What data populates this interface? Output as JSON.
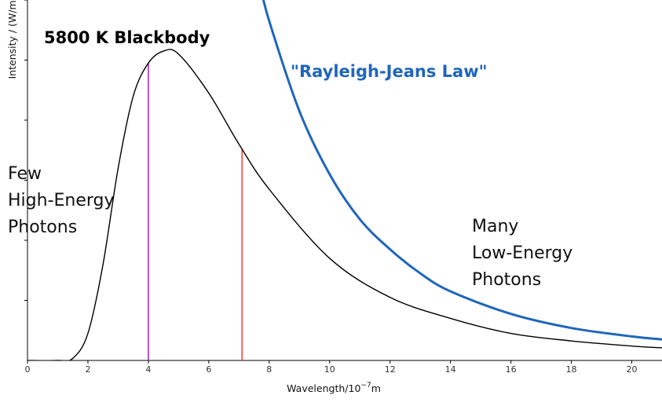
{
  "chart_data": {
    "type": "line",
    "title": "5800 K Blackbody",
    "xlabel": "Wavelength/10",
    "xlabel_exponent": "−7",
    "xlabel_unit": "m",
    "ylabel": "Intensity / (W/m)",
    "xlim": [
      0,
      21
    ],
    "ylim": [
      0,
      1.2
    ],
    "x_ticks": [
      0,
      2,
      4,
      6,
      8,
      10,
      12,
      14,
      16,
      18,
      20
    ],
    "y_ticks": [
      0.2,
      0.4,
      0.6,
      0.8,
      1.0,
      1.2
    ],
    "temperature_K": 5800,
    "series": [
      {
        "name": "5800 K Blackbody",
        "color": "#000000",
        "x": [
          0,
          1,
          1.5,
          2,
          2.5,
          3,
          3.5,
          4,
          4.5,
          5,
          6,
          7,
          8,
          10,
          12,
          14,
          16,
          18,
          20,
          21
        ],
        "y": [
          0,
          0.0,
          0.007,
          0.09,
          0.32,
          0.64,
          0.88,
          0.99,
          1.03,
          1.02,
          0.89,
          0.72,
          0.57,
          0.34,
          0.21,
          0.14,
          0.09,
          0.065,
          0.048,
          0.042
        ]
      },
      {
        "name": "\"Rayleigh-Jeans Law\"",
        "color": "#1f66bb",
        "x": [
          7.7,
          8,
          9,
          10,
          11,
          12,
          13,
          14,
          16,
          18,
          20,
          21
        ],
        "y": [
          1.25,
          1.13,
          0.83,
          0.62,
          0.47,
          0.37,
          0.29,
          0.23,
          0.155,
          0.108,
          0.08,
          0.07
        ]
      }
    ],
    "markers": [
      {
        "x": 4.0,
        "color": "#a020c0"
      },
      {
        "x": 7.1,
        "color": "#ff3333"
      }
    ],
    "annotations": {
      "rayleigh_jeans": "\"Rayleigh-Jeans Law\"",
      "left_lines": [
        "Few",
        "High-Energy",
        "Photons"
      ],
      "right_lines": [
        "Many",
        "Low-Energy",
        "Photons"
      ]
    },
    "colors": {
      "blackbody": "#000000",
      "rayleigh_jeans": "#1f66bb",
      "violet_line": "#a020c0",
      "red_line": "#ff3333"
    }
  }
}
